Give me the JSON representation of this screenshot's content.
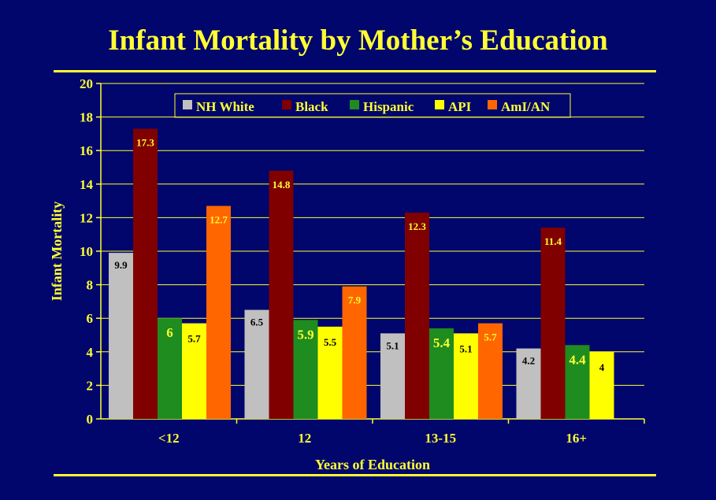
{
  "title": "Infant Mortality by Mother’s Education",
  "colors": {
    "background": "#00066b",
    "text": "#ffff33",
    "grid": "#ffff33"
  },
  "chart_data": {
    "type": "bar",
    "categories": [
      "<12",
      "12",
      "13-15",
      "16+"
    ],
    "series": [
      {
        "name": "NH White",
        "color": "#c0c0c0",
        "label_color": "#000000",
        "values": [
          9.9,
          6.5,
          5.1,
          4.2
        ]
      },
      {
        "name": "Black",
        "color": "#800000",
        "label_color": "#ffff33",
        "values": [
          17.3,
          14.8,
          12.3,
          11.4
        ]
      },
      {
        "name": "Hispanic",
        "color": "#1e8c1e",
        "label_color": "#ffff33",
        "values": [
          6,
          5.9,
          5.4,
          4.4
        ]
      },
      {
        "name": "API",
        "color": "#ffff00",
        "label_color": "#000000",
        "values": [
          5.7,
          5.5,
          5.1,
          4
        ]
      },
      {
        "name": "AmI/AN",
        "color": "#ff6600",
        "label_color": "#ffff33",
        "values": [
          12.7,
          7.9,
          5.7,
          null
        ]
      }
    ],
    "data_labels": [
      [
        "9.9",
        "6.5",
        "5.1",
        "4.2"
      ],
      [
        "17.3",
        "14.8",
        "12.3",
        "11.4"
      ],
      [
        "6",
        "5.9",
        "5.4",
        "4.4"
      ],
      [
        "5.7",
        "5.5",
        "5.1",
        "4"
      ],
      [
        "12.7",
        "7.9",
        "5.7",
        ""
      ]
    ],
    "xlabel": "Years of Education",
    "ylabel": "Infant Mortality",
    "ylim": [
      0,
      20
    ],
    "yticks": [
      "0",
      "2",
      "4",
      "6",
      "8",
      "10",
      "12",
      "14",
      "16",
      "18",
      "20"
    ],
    "grid": true,
    "legend_position": "top"
  }
}
